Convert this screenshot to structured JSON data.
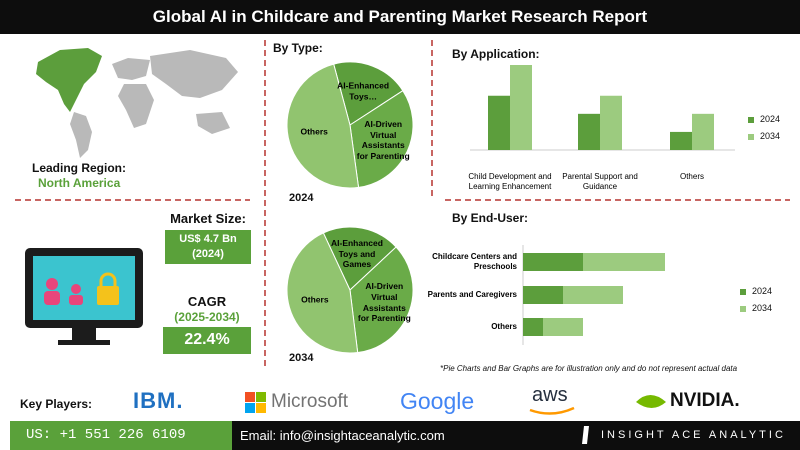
{
  "header": {
    "title": "Global AI in Childcare and Parenting Market Research Report"
  },
  "region": {
    "label": "Leading Region:",
    "value": "North America"
  },
  "market_size": {
    "label": "Market Size:",
    "value": "US$ 4.7 Bn",
    "year": "(2024)"
  },
  "cagr": {
    "label": "CAGR",
    "period": "(2025-2034)",
    "value": "22.4%"
  },
  "chart_data": [
    {
      "type": "pie",
      "title": "By Type:",
      "label": "2024",
      "categories": [
        "AI-Enhanced Toys…",
        "AI-Driven Virtual Assistants for Parenting",
        "Others"
      ],
      "values": [
        20,
        32,
        48
      ],
      "colors": [
        "#5c9e3c",
        "#6aab48",
        "#91c46f"
      ]
    },
    {
      "type": "pie",
      "label": "2034",
      "categories": [
        "AI-Enhanced Toys and Games",
        "AI-Driven Virtual Assistants for Parenting",
        "Others"
      ],
      "values": [
        20,
        35,
        45
      ],
      "colors": [
        "#5c9e3c",
        "#6aab48",
        "#91c46f"
      ]
    },
    {
      "type": "bar",
      "title": "By Application:",
      "categories": [
        "Child Development and Learning Enhancement",
        "Parental Support and Guidance",
        "Others"
      ],
      "series": [
        {
          "name": "2024",
          "color": "#5c9e3c",
          "values": [
            3,
            2,
            1
          ]
        },
        {
          "name": "2034",
          "color": "#9ccb7f",
          "values": [
            4.7,
            3,
            2
          ]
        }
      ]
    },
    {
      "type": "stacked-barh",
      "title": "By End-User:",
      "categories": [
        "Childcare Centers and Preschools",
        "Parents and Caregivers",
        "Others"
      ],
      "series": [
        {
          "name": "2024",
          "color": "#5c9e3c",
          "values": [
            3,
            2,
            1
          ]
        },
        {
          "name": "2034",
          "color": "#9ccb7f",
          "values": [
            4.1,
            3,
            2
          ]
        }
      ]
    }
  ],
  "note": "*Pie Charts and Bar Graphs are for illustration only and do not represent actual data",
  "key_players": {
    "label": "Key Players:",
    "names": [
      "IBM.",
      "Microsoft",
      "Google",
      "aws",
      "NVIDIA."
    ]
  },
  "footer": {
    "phone": "US: +1 551 226 6109",
    "email": "Email: info@insightaceanalytic.com",
    "brand": "INSIGHT ACE ANALYTIC"
  }
}
